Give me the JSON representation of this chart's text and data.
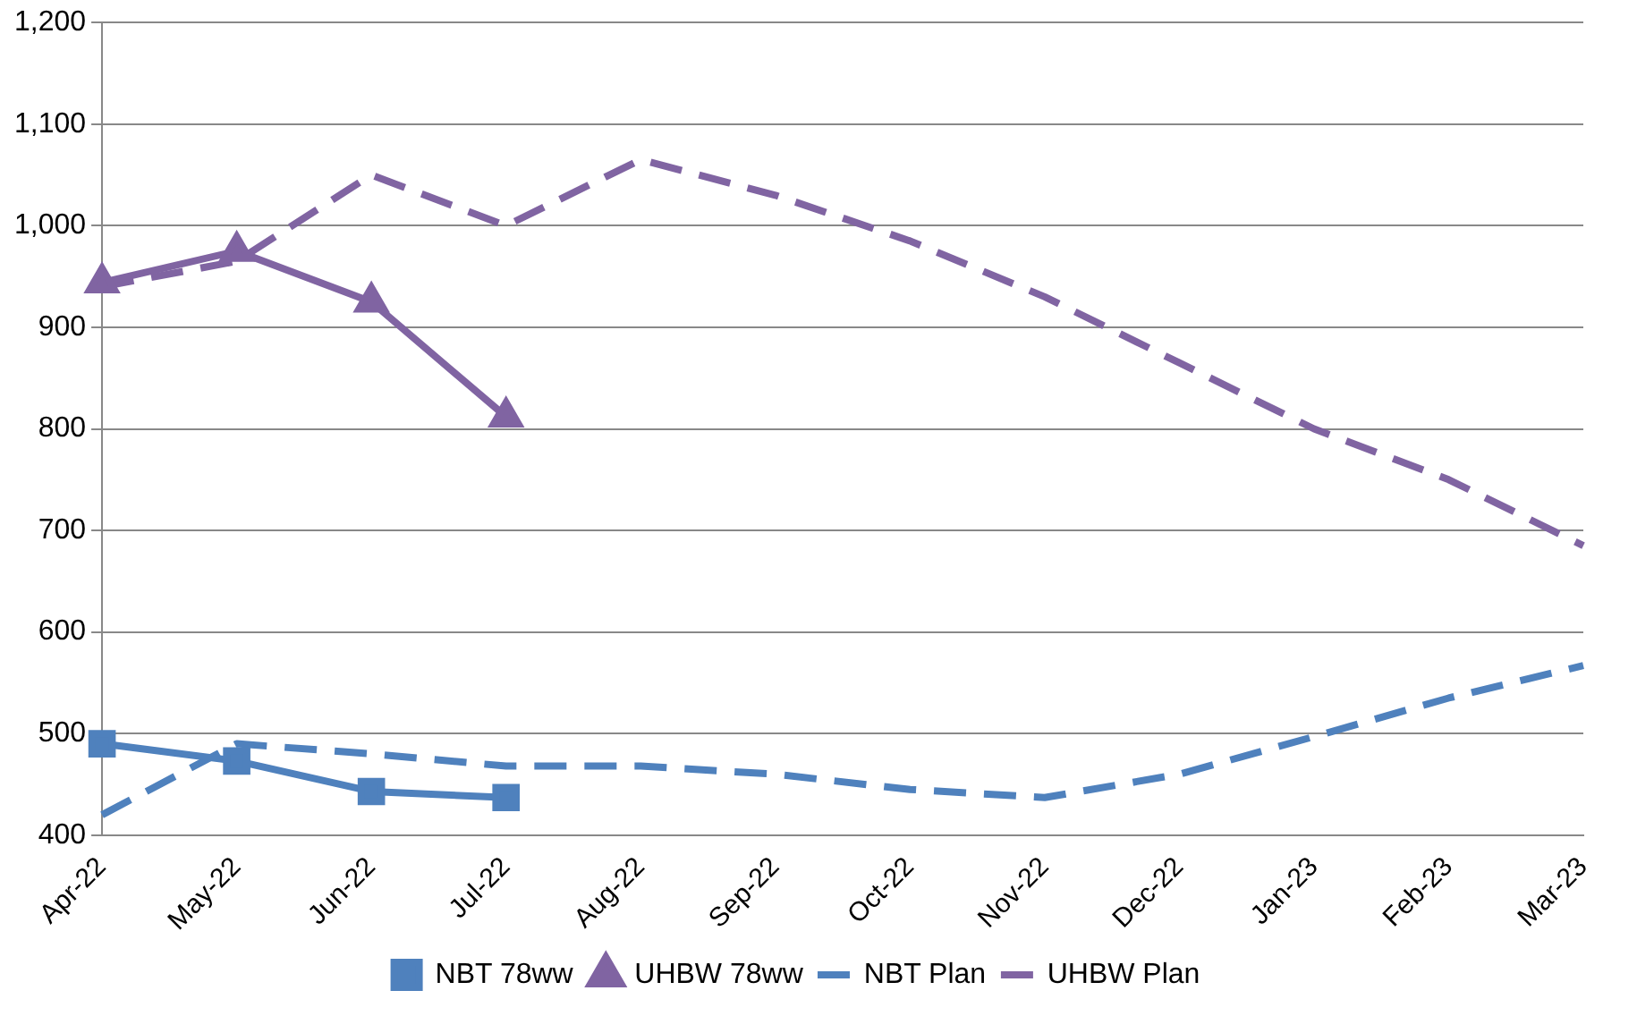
{
  "chart_data": {
    "type": "line",
    "categories": [
      "Apr-22",
      "May-22",
      "Jun-22",
      "Jul-22",
      "Aug-22",
      "Sep-22",
      "Oct-22",
      "Nov-22",
      "Dec-22",
      "Jan-23",
      "Feb-23",
      "Mar-23"
    ],
    "series": [
      {
        "name": "NBT 78ww",
        "color": "#4f81bd",
        "marker": "square",
        "line_style": "solid",
        "values": [
          490,
          473,
          443,
          437,
          null,
          null,
          null,
          null,
          null,
          null,
          null,
          null
        ]
      },
      {
        "name": "UHBW 78ww",
        "color": "#8064a2",
        "marker": "triangle",
        "line_style": "solid",
        "values": [
          944,
          975,
          925,
          812,
          null,
          null,
          null,
          null,
          null,
          null,
          null,
          null
        ]
      },
      {
        "name": "NBT Plan",
        "color": "#4f81bd",
        "marker": "none",
        "line_style": "dashed",
        "values": [
          420,
          490,
          480,
          468,
          468,
          460,
          445,
          437,
          460,
          497,
          535,
          567
        ]
      },
      {
        "name": "UHBW Plan",
        "color": "#8064a2",
        "marker": "none",
        "line_style": "dashed",
        "values": [
          940,
          965,
          1050,
          1000,
          1065,
          1030,
          985,
          930,
          865,
          800,
          750,
          685
        ]
      }
    ],
    "ylim": [
      400,
      1200
    ],
    "yticks": [
      400,
      500,
      600,
      700,
      800,
      900,
      {
        "value": 1000,
        "label": "1,000"
      },
      {
        "value": 1100,
        "label": "1,100"
      },
      {
        "value": 1200,
        "label": "1,200"
      }
    ],
    "grid": "y",
    "legend": "bottom"
  }
}
